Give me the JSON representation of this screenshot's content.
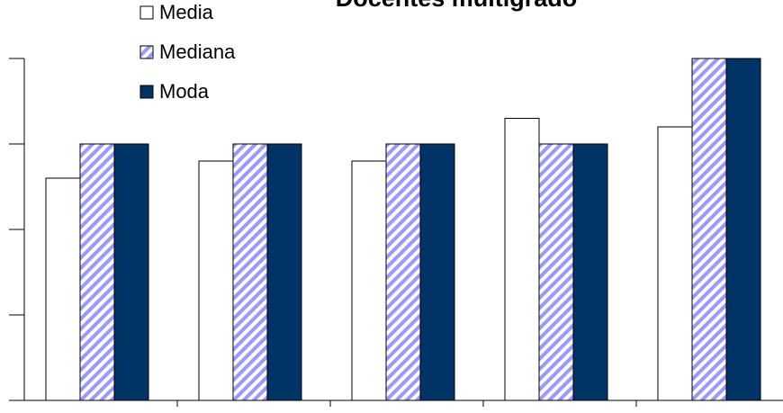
{
  "chart_data": {
    "type": "bar",
    "title": "Docentes multigrado",
    "categories": [
      null,
      null,
      null,
      null,
      null
    ],
    "series": [
      {
        "name": "Media",
        "color": "#ffffff",
        "values": [
          2.6,
          2.8,
          2.8,
          3.3,
          3.2
        ]
      },
      {
        "name": "Mediana",
        "color": "#9999ff",
        "pattern": "diagonal",
        "values": [
          3,
          3,
          3,
          3,
          4
        ]
      },
      {
        "name": "Moda",
        "color": "#003366",
        "values": [
          3,
          3,
          3,
          3,
          4
        ]
      }
    ],
    "ylim": [
      0,
      4
    ],
    "yticks": [
      0,
      1,
      2,
      3,
      4
    ],
    "grid": false,
    "legend": "top-left"
  }
}
